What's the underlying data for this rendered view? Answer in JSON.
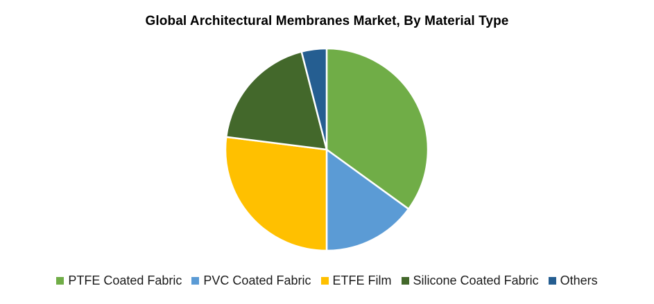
{
  "chart_data": {
    "type": "pie",
    "title": "Global Architectural Membranes Market, By Material Type",
    "legend_position": "bottom",
    "slices": [
      {
        "label": "PTFE Coated Fabric",
        "value": 35,
        "color": "#70AD47"
      },
      {
        "label": "PVC Coated Fabric",
        "value": 15,
        "color": "#5B9BD5"
      },
      {
        "label": "ETFE Film",
        "value": 27,
        "color": "#FFC000"
      },
      {
        "label": "Silicone Coated Fabric",
        "value": 19,
        "color": "#43682B"
      },
      {
        "label": "Others",
        "value": 4,
        "color": "#255E91"
      }
    ]
  }
}
